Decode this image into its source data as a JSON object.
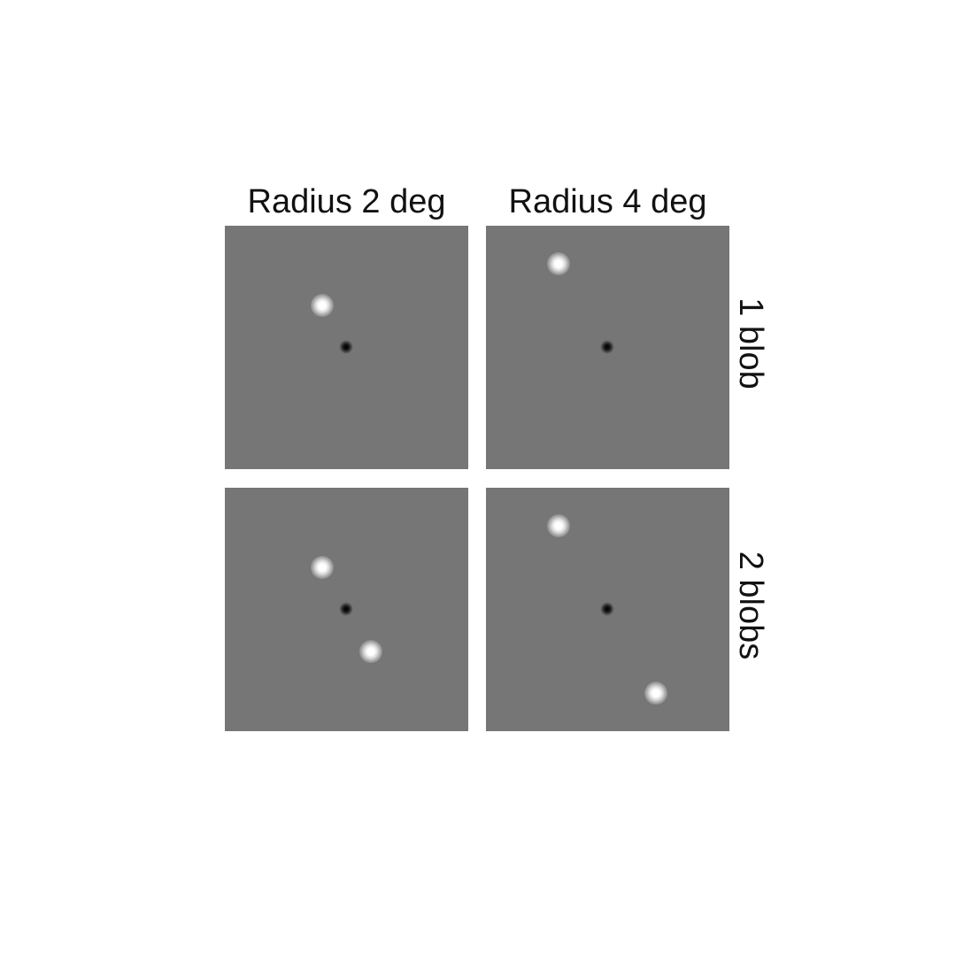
{
  "columns": [
    {
      "label": "Radius 2 deg"
    },
    {
      "label": "Radius 4 deg"
    }
  ],
  "rows": [
    {
      "label": "1 blob"
    },
    {
      "label": "2 blobs"
    }
  ],
  "panels": [
    {
      "row": 0,
      "col": 0,
      "blobs": 1
    },
    {
      "row": 0,
      "col": 1,
      "blobs": 1
    },
    {
      "row": 1,
      "col": 0,
      "blobs": 2
    },
    {
      "row": 1,
      "col": 1,
      "blobs": 2
    }
  ],
  "colors": {
    "background": "#767676",
    "fixation": "#000000",
    "blob": "#ffffff"
  }
}
